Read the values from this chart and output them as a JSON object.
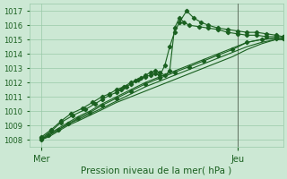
{
  "bg_color": "#cce8d4",
  "grid_color": "#99c9a8",
  "line_color": "#1a6020",
  "text_color": "#1a6020",
  "xlabel": "Pression niveau de la mer( hPa )",
  "xtick_labels": [
    "Mer",
    "Jeu"
  ],
  "xtick_positions": [
    0.05,
    0.86
  ],
  "vline_x": 0.86,
  "ylim": [
    1007.5,
    1017.5
  ],
  "yticks": [
    1008,
    1009,
    1010,
    1011,
    1012,
    1013,
    1014,
    1015,
    1016,
    1017
  ],
  "xlim": [
    0.0,
    1.05
  ],
  "series": [
    {
      "x": [
        0.05,
        0.08,
        0.12,
        0.16,
        0.2,
        0.25,
        0.3,
        0.36,
        0.42,
        0.48,
        0.54,
        0.6,
        0.66,
        0.72,
        0.78,
        0.84,
        0.9,
        0.96,
        1.02,
        1.05
      ],
      "y": [
        1008.0,
        1008.3,
        1008.7,
        1009.1,
        1009.5,
        1009.9,
        1010.4,
        1010.9,
        1011.4,
        1011.9,
        1012.3,
        1012.7,
        1013.1,
        1013.5,
        1013.9,
        1014.3,
        1014.8,
        1015.0,
        1015.1,
        1015.1
      ],
      "marker": true
    },
    {
      "x": [
        0.05,
        0.08,
        0.12,
        0.16,
        0.2,
        0.25,
        0.3,
        0.36,
        0.42,
        0.48,
        0.54,
        0.6,
        0.66,
        0.72,
        0.78,
        0.84,
        0.9,
        0.96,
        1.02,
        1.05
      ],
      "y": [
        1008.0,
        1008.4,
        1008.8,
        1009.2,
        1009.6,
        1010.0,
        1010.5,
        1011.0,
        1011.5,
        1012.0,
        1012.4,
        1012.8,
        1013.2,
        1013.6,
        1014.0,
        1014.4,
        1014.8,
        1015.0,
        1015.1,
        1015.1
      ],
      "marker": false
    },
    {
      "x": [
        0.05,
        0.08,
        0.12,
        0.16,
        0.2,
        0.25,
        0.3,
        0.36,
        0.42,
        0.48,
        0.54,
        0.6,
        0.66,
        0.72,
        0.78,
        0.84,
        0.9,
        0.96,
        1.02,
        1.05
      ],
      "y": [
        1008.0,
        1008.3,
        1008.7,
        1009.1,
        1009.4,
        1009.8,
        1010.2,
        1010.7,
        1011.2,
        1011.7,
        1012.1,
        1012.5,
        1012.9,
        1013.3,
        1013.7,
        1014.1,
        1014.5,
        1014.8,
        1015.0,
        1015.0
      ],
      "marker": false
    },
    {
      "x": [
        0.05,
        0.08,
        0.12,
        0.16,
        0.2,
        0.25,
        0.3,
        0.36,
        0.42,
        0.48,
        0.54,
        0.6,
        0.66,
        0.72,
        0.78,
        0.84,
        0.9,
        0.96,
        1.02,
        1.05
      ],
      "y": [
        1008.0,
        1008.2,
        1008.6,
        1009.0,
        1009.3,
        1009.7,
        1010.1,
        1010.6,
        1011.0,
        1011.4,
        1011.8,
        1012.2,
        1012.6,
        1013.0,
        1013.4,
        1013.8,
        1014.3,
        1014.7,
        1015.0,
        1015.0
      ],
      "marker": false
    },
    {
      "x": [
        0.05,
        0.09,
        0.13,
        0.18,
        0.23,
        0.27,
        0.3,
        0.33,
        0.36,
        0.38,
        0.4,
        0.42,
        0.44,
        0.46,
        0.48,
        0.5,
        0.52,
        0.54,
        0.56,
        0.58,
        0.6,
        0.62,
        0.64,
        0.66,
        0.7,
        0.74,
        0.78,
        0.82,
        0.86,
        0.9,
        0.94,
        0.98,
        1.02,
        1.05
      ],
      "y": [
        1008.1,
        1008.6,
        1009.2,
        1009.7,
        1010.1,
        1010.5,
        1010.8,
        1011.1,
        1011.3,
        1011.5,
        1011.7,
        1011.9,
        1012.1,
        1012.3,
        1012.5,
        1012.7,
        1012.8,
        1012.7,
        1012.5,
        1012.8,
        1015.8,
        1016.5,
        1016.2,
        1016.0,
        1015.9,
        1015.8,
        1015.7,
        1015.5,
        1015.4,
        1015.3,
        1015.3,
        1015.2,
        1015.2,
        1015.2
      ],
      "marker": true
    },
    {
      "x": [
        0.05,
        0.09,
        0.13,
        0.17,
        0.22,
        0.26,
        0.3,
        0.33,
        0.36,
        0.39,
        0.42,
        0.45,
        0.48,
        0.5,
        0.52,
        0.54,
        0.56,
        0.58,
        0.6,
        0.62,
        0.65,
        0.68,
        0.71,
        0.74,
        0.78,
        0.82,
        0.86,
        0.9,
        0.94,
        0.98,
        1.02,
        1.05
      ],
      "y": [
        1008.2,
        1008.7,
        1009.3,
        1009.8,
        1010.2,
        1010.6,
        1011.0,
        1011.2,
        1011.5,
        1011.7,
        1012.0,
        1012.2,
        1012.4,
        1012.5,
        1012.6,
        1012.5,
        1013.2,
        1014.5,
        1015.5,
        1016.2,
        1017.0,
        1016.5,
        1016.2,
        1016.0,
        1015.8,
        1015.7,
        1015.6,
        1015.5,
        1015.5,
        1015.4,
        1015.3,
        1015.2
      ],
      "marker": true
    }
  ]
}
